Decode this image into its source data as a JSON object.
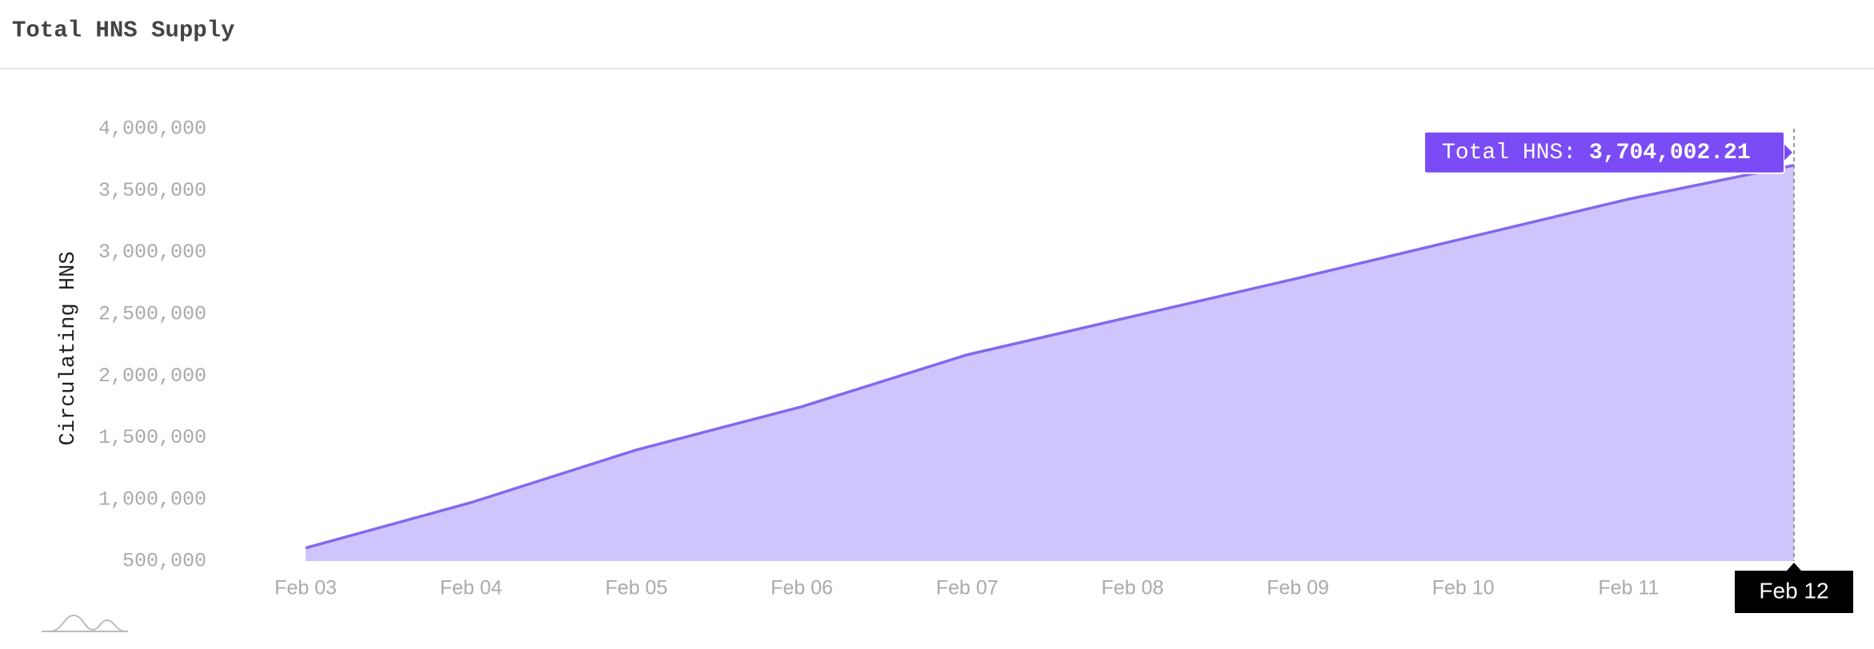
{
  "header": {
    "title": "Total HNS Supply"
  },
  "chart_data": {
    "type": "area",
    "y_label": "Circulating HNS",
    "categories": [
      "Feb 03",
      "Feb 04",
      "Feb 05",
      "Feb 06",
      "Feb 07",
      "Feb 08",
      "Feb 09",
      "Feb 10",
      "Feb 11",
      "Feb 12"
    ],
    "series": [
      {
        "name": "Total HNS:",
        "color": "#8468ec",
        "fill": "#d0c4fc",
        "values": [
          606000,
          974000,
          1400000,
          1750000,
          2170000,
          2480000,
          2790000,
          3110000,
          3430000,
          3704002.21
        ],
        "value_labels": [
          null,
          null,
          null,
          null,
          null,
          null,
          null,
          null,
          null,
          "3,704,002.21"
        ]
      }
    ],
    "ylim": [
      500000,
      4000000
    ],
    "yticks": [
      {
        "value": 500000,
        "label": "500,000"
      },
      {
        "value": 1000000,
        "label": "1,000,000"
      },
      {
        "value": 1500000,
        "label": "1,500,000"
      },
      {
        "value": 2000000,
        "label": "2,000,000"
      },
      {
        "value": 2500000,
        "label": "2,500,000"
      },
      {
        "value": 3000000,
        "label": "3,000,000"
      },
      {
        "value": 3500000,
        "label": "3,500,000"
      },
      {
        "value": 4000000,
        "label": "4,000,000"
      }
    ],
    "tooltip_color": "#7b4cf5"
  }
}
